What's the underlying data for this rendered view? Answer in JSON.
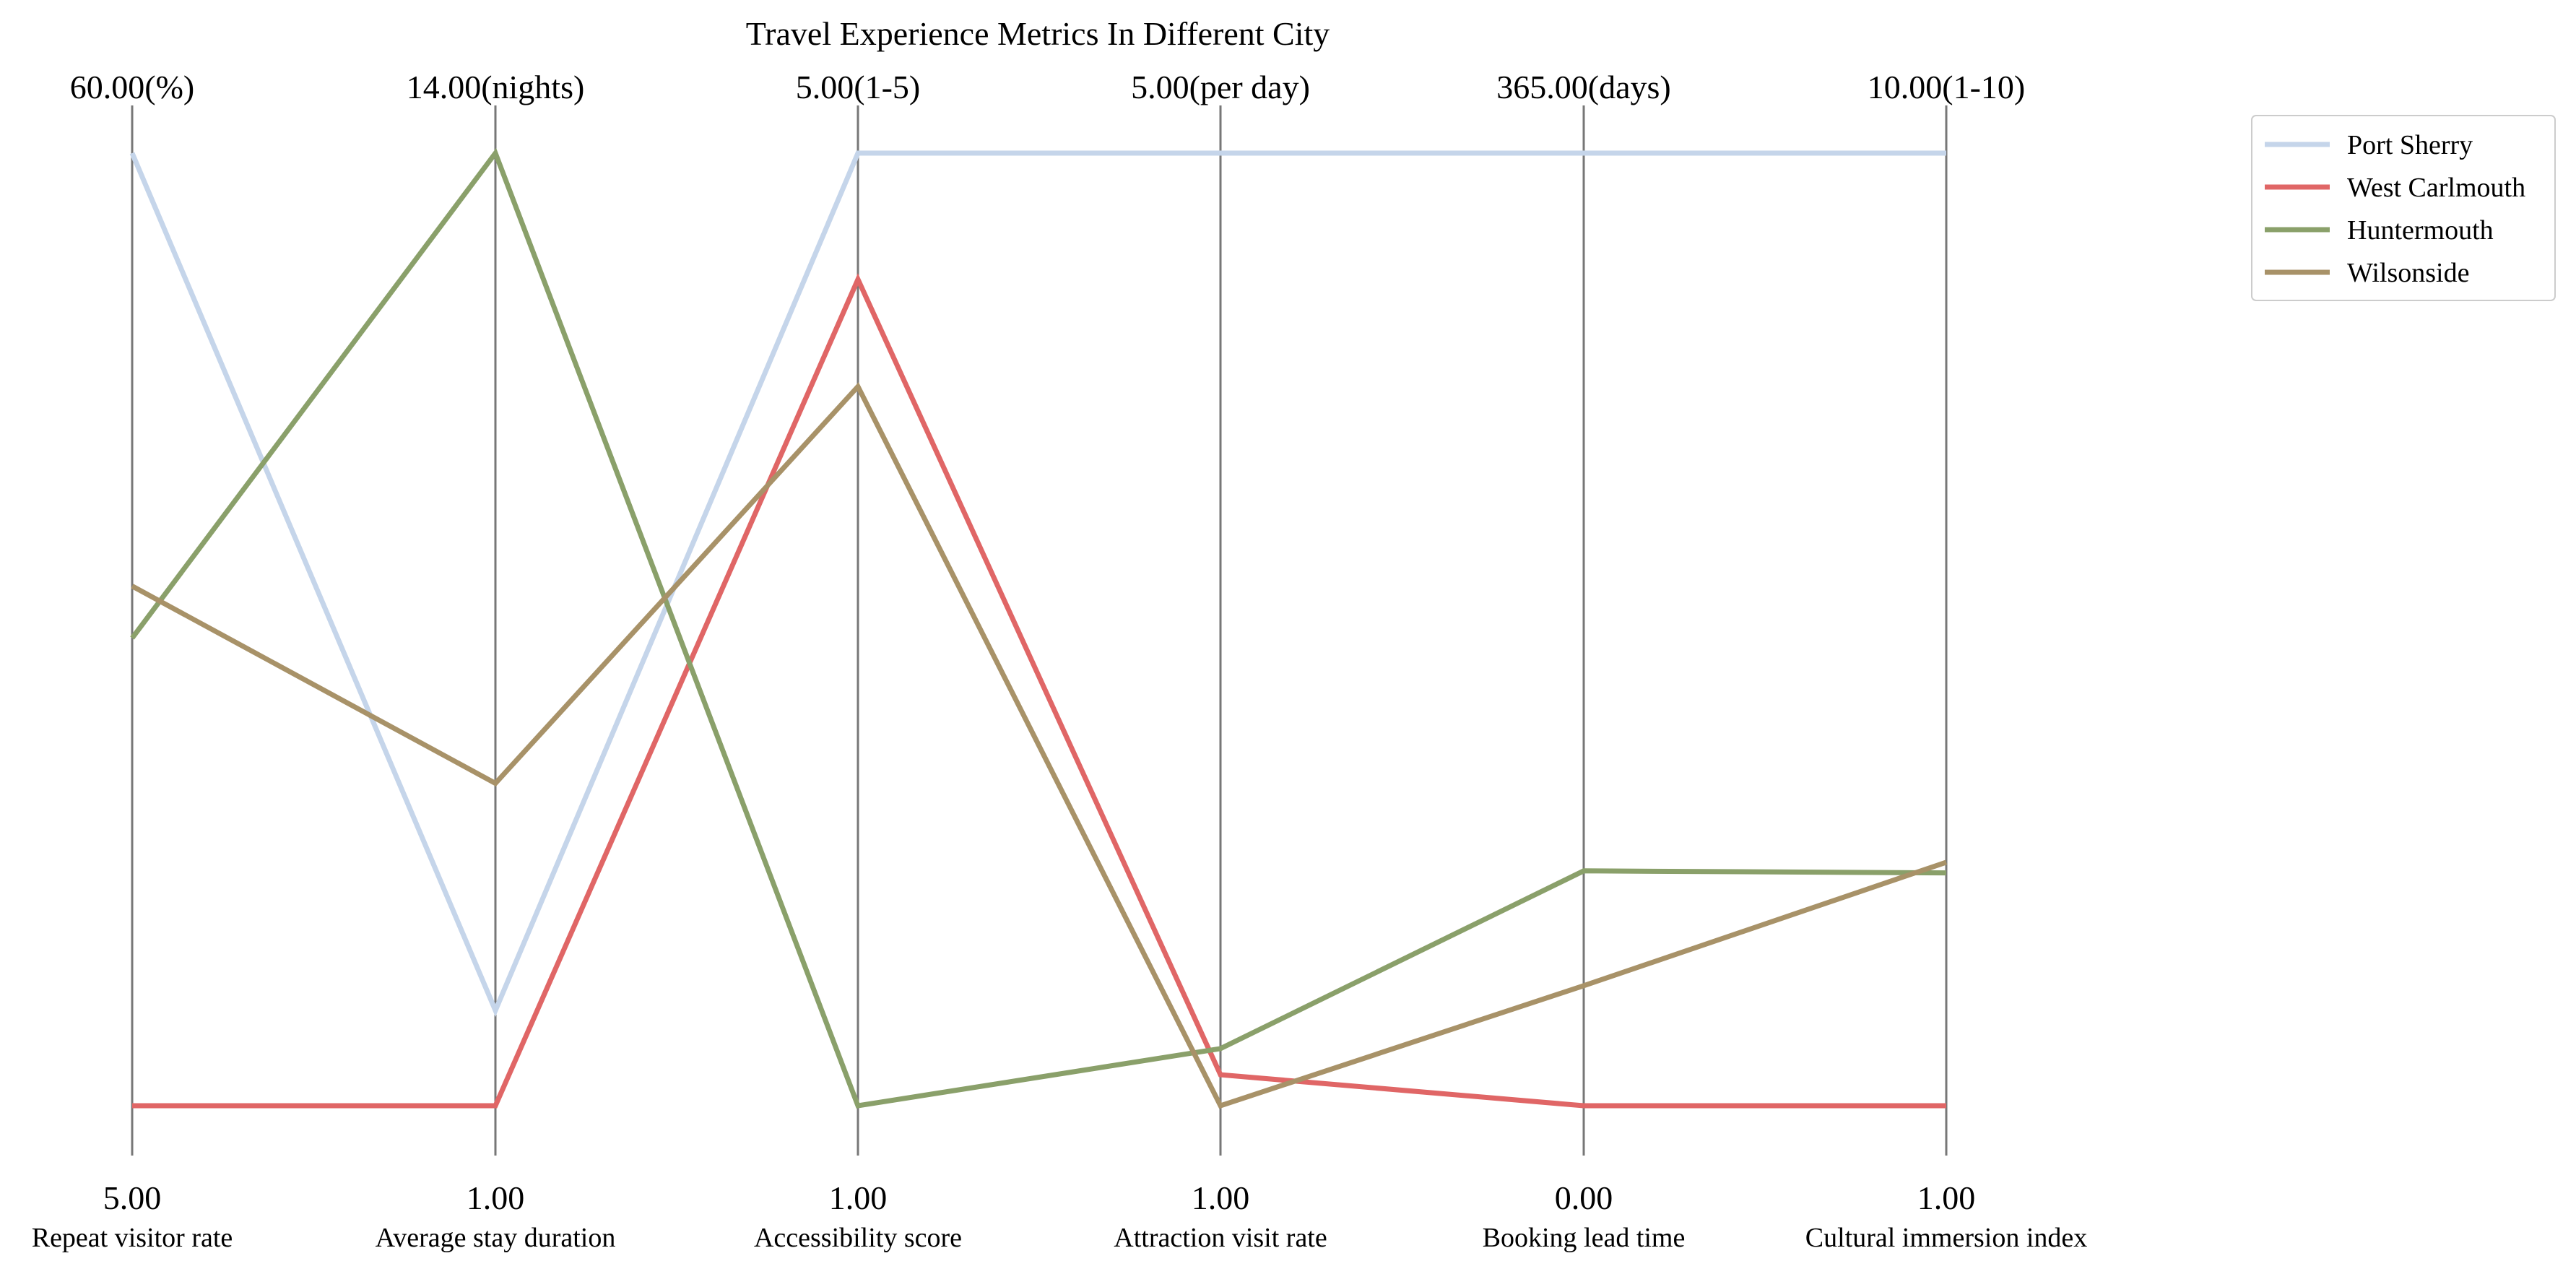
{
  "chart_data": {
    "type": "parallel_coordinates",
    "title": "Travel Experience Metrics In Different City",
    "axes": [
      {
        "label": "Repeat visitor rate",
        "min": 5.0,
        "max": 60.0,
        "min_label": "5.00",
        "max_label": "60.00(%)"
      },
      {
        "label": "Average stay duration",
        "min": 1.0,
        "max": 14.0,
        "min_label": "1.00",
        "max_label": "14.00(nights)"
      },
      {
        "label": "Accessibility score",
        "min": 1.0,
        "max": 5.0,
        "min_label": "1.00",
        "max_label": "5.00(1-5)"
      },
      {
        "label": "Attraction visit rate",
        "min": 1.0,
        "max": 5.0,
        "min_label": "1.00",
        "max_label": "5.00(per day)"
      },
      {
        "label": "Booking lead time",
        "min": 0.0,
        "max": 365.0,
        "min_label": "0.00",
        "max_label": "365.00(days)"
      },
      {
        "label": "Cultural immersion index",
        "min": 1.0,
        "max": 10.0,
        "min_label": "1.00",
        "max_label": "10.00(1-10)"
      }
    ],
    "series": [
      {
        "name": "Port Sherry",
        "color": "#c5d5ea",
        "values": [
          60.0,
          2.3,
          5.0,
          5.0,
          365.0,
          10.0
        ]
      },
      {
        "name": "West Carlmouth",
        "color": "#e06666",
        "values": [
          5.0,
          1.0,
          4.47,
          1.13,
          0.0,
          1.0
        ]
      },
      {
        "name": "Huntermouth",
        "color": "#8aa06a",
        "values": [
          32.0,
          14.0,
          1.0,
          1.24,
          90.0,
          3.2
        ]
      },
      {
        "name": "Wilsonside",
        "color": "#a89268",
        "values": [
          35.0,
          5.4,
          4.02,
          1.0,
          46.0,
          3.3
        ]
      }
    ],
    "grid": false,
    "legend": "top-right"
  }
}
